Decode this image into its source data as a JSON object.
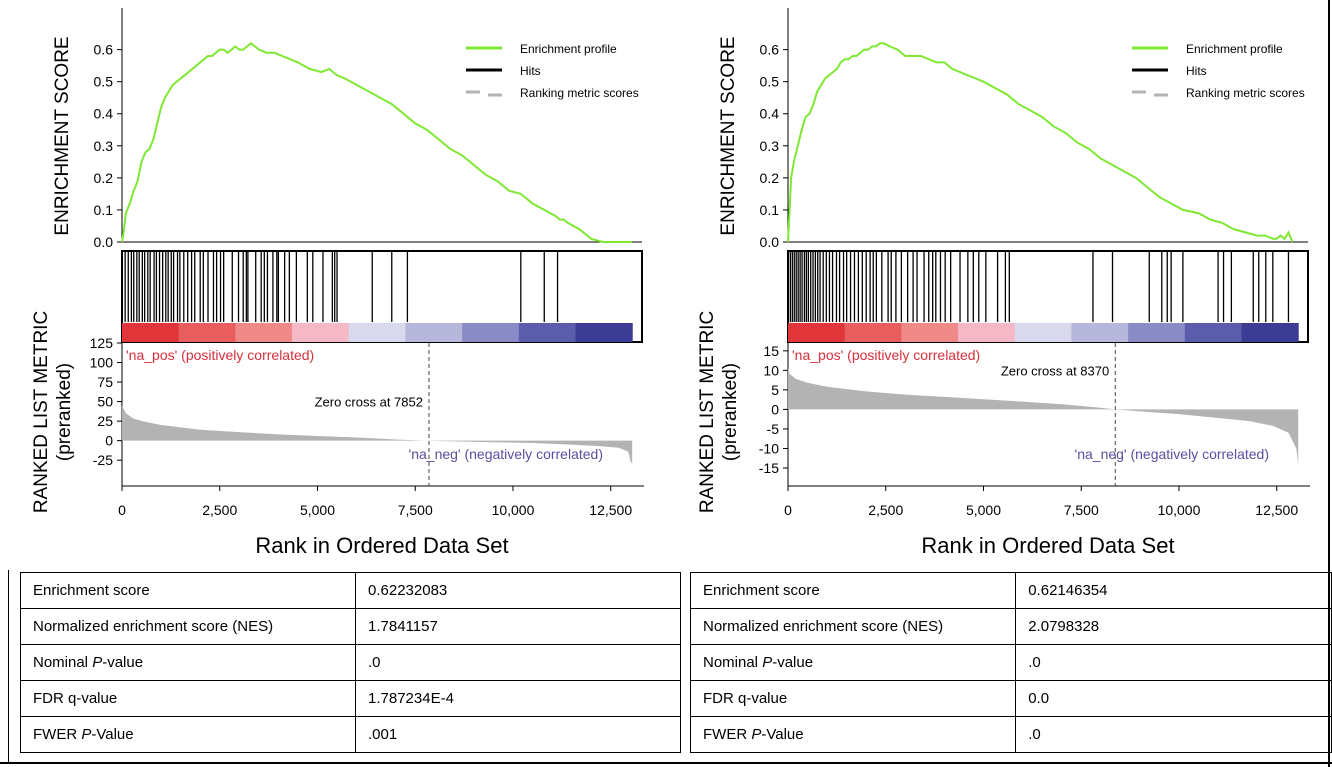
{
  "chart_data": [
    {
      "type": "line",
      "panel": "left",
      "ylabel_top": "ENRICHMENT SCORE",
      "ylabel_bottom": [
        "RANKED LIST METRIC",
        "(preranked)"
      ],
      "xlabel": "Rank in Ordered Data Set",
      "legend": [
        "Enrichment profile",
        "Hits",
        "Ranking metric scores"
      ],
      "legend_position": "top-right",
      "es_ylim": [
        0,
        0.63
      ],
      "es_yticks": [
        "0.0",
        "0.1",
        "0.2",
        "0.3",
        "0.4",
        "0.5",
        "0.6"
      ],
      "xlim": [
        0,
        13300
      ],
      "xticks": [
        "0",
        "2,500",
        "5,000",
        "7,500",
        "10,000",
        "12,500"
      ],
      "n_genes": 13050,
      "profile": {
        "x": [
          0,
          50,
          100,
          200,
          300,
          400,
          500,
          600,
          700,
          800,
          900,
          1000,
          1100,
          1200,
          1300,
          1400,
          1500,
          1600,
          1700,
          1800,
          1900,
          2000,
          2100,
          2200,
          2300,
          2400,
          2500,
          2600,
          2700,
          2800,
          2900,
          3000,
          3100,
          3200,
          3300,
          3400,
          3500,
          3700,
          3900,
          4100,
          4300,
          4500,
          4800,
          5100,
          5300,
          5400,
          5500,
          5700,
          6000,
          6300,
          6600,
          6900,
          7200,
          7500,
          7800,
          8100,
          8400,
          8700,
          9000,
          9300,
          9600,
          9900,
          10200,
          10500,
          10800,
          11100,
          11200,
          11300,
          11400,
          11700,
          12000,
          12300,
          12600,
          12900,
          13050
        ],
        "es": [
          0,
          0.04,
          0.09,
          0.12,
          0.16,
          0.19,
          0.25,
          0.28,
          0.29,
          0.32,
          0.37,
          0.42,
          0.45,
          0.47,
          0.49,
          0.5,
          0.51,
          0.52,
          0.53,
          0.54,
          0.55,
          0.56,
          0.57,
          0.58,
          0.58,
          0.59,
          0.6,
          0.6,
          0.59,
          0.6,
          0.61,
          0.6,
          0.6,
          0.61,
          0.62,
          0.61,
          0.6,
          0.59,
          0.59,
          0.58,
          0.57,
          0.56,
          0.54,
          0.53,
          0.54,
          0.53,
          0.52,
          0.51,
          0.49,
          0.47,
          0.45,
          0.43,
          0.4,
          0.37,
          0.35,
          0.32,
          0.29,
          0.27,
          0.24,
          0.21,
          0.19,
          0.16,
          0.15,
          0.12,
          0.1,
          0.08,
          0.07,
          0.07,
          0.06,
          0.04,
          0.01,
          0.0,
          0.0,
          0.0,
          0.0
        ]
      },
      "hits": [
        80,
        160,
        240,
        300,
        380,
        440,
        520,
        580,
        660,
        720,
        820,
        880,
        960,
        1040,
        1120,
        1180,
        1260,
        1320,
        1420,
        1480,
        1580,
        1680,
        1780,
        1860,
        2000,
        2080,
        2200,
        2340,
        2420,
        2520,
        2600,
        2820,
        2980,
        3100,
        3180,
        3220,
        3420,
        3560,
        3640,
        3720,
        3860,
        3960,
        4000,
        4160,
        4280,
        4460,
        4740,
        4880,
        5140,
        5380,
        5440,
        5500,
        6400,
        6900,
        7300,
        10200,
        10800,
        11140
      ],
      "metric_ylim": [
        -35,
        125
      ],
      "metric_yticks": [
        "125",
        "100",
        "75",
        "50",
        "25",
        "0",
        "-25"
      ],
      "metric_ytick_values": [
        125,
        100,
        75,
        50,
        25,
        0,
        -25
      ],
      "metric": {
        "x": [
          0,
          100,
          300,
          600,
          1000,
          1500,
          2000,
          3000,
          4000,
          5000,
          6000,
          7000,
          7852,
          8500,
          9500,
          10500,
          11500,
          12200,
          12700,
          12950,
          13000,
          13050
        ],
        "y": [
          45,
          35,
          28,
          24,
          20,
          17,
          14,
          11,
          8,
          6,
          4,
          1.5,
          0,
          -1,
          -2,
          -3,
          -5,
          -7,
          -9,
          -14,
          -25,
          -30
        ]
      },
      "heatmap_colors": [
        "#e0363a",
        "#e85d5e",
        "#f08a88",
        "#f4b8c6",
        "#d9d9ee",
        "#b7b7dc",
        "#8a8ac6",
        "#5c5cac",
        "#3c3c94"
      ],
      "pos_label": "'na_pos' (positively correlated)",
      "neg_label": "'na_neg' (negatively correlated)",
      "zero_cross": 7852,
      "zero_cross_label": "Zero cross at 7852"
    },
    {
      "type": "line",
      "panel": "right",
      "ylabel_top": "ENRICHMENT SCORE",
      "ylabel_bottom": [
        "RANKED LIST METRIC",
        "(preranked)"
      ],
      "xlabel": "Rank in Ordered Data Set",
      "legend": [
        "Enrichment profile",
        "Hits",
        "Ranking metric scores"
      ],
      "legend_position": "top-right",
      "es_ylim": [
        0,
        0.63
      ],
      "es_yticks": [
        "0.0",
        "0.1",
        "0.2",
        "0.3",
        "0.4",
        "0.5",
        "0.6"
      ],
      "xlim": [
        0,
        13300
      ],
      "xticks": [
        "0",
        "2,500",
        "5,000",
        "7,500",
        "10,000",
        "12,500"
      ],
      "n_genes": 13050,
      "profile": {
        "x": [
          0,
          40,
          80,
          150,
          250,
          350,
          450,
          550,
          650,
          750,
          850,
          950,
          1050,
          1150,
          1250,
          1350,
          1450,
          1550,
          1650,
          1750,
          1850,
          1950,
          2050,
          2150,
          2250,
          2350,
          2450,
          2600,
          2800,
          3000,
          3200,
          3400,
          3600,
          3800,
          4000,
          4200,
          4400,
          4600,
          4800,
          5000,
          5300,
          5600,
          5900,
          6200,
          6500,
          6800,
          7100,
          7400,
          7700,
          8000,
          8300,
          8600,
          8900,
          9200,
          9500,
          9800,
          10100,
          10500,
          10800,
          11100,
          11400,
          11700,
          12000,
          12200,
          12400,
          12500,
          12600,
          12700,
          12800,
          12900
        ],
        "es": [
          0,
          0.1,
          0.2,
          0.25,
          0.3,
          0.35,
          0.39,
          0.4,
          0.43,
          0.47,
          0.49,
          0.51,
          0.52,
          0.53,
          0.54,
          0.56,
          0.57,
          0.57,
          0.58,
          0.58,
          0.59,
          0.6,
          0.6,
          0.61,
          0.61,
          0.62,
          0.62,
          0.61,
          0.6,
          0.58,
          0.58,
          0.58,
          0.57,
          0.56,
          0.56,
          0.54,
          0.53,
          0.52,
          0.51,
          0.5,
          0.48,
          0.46,
          0.43,
          0.41,
          0.39,
          0.36,
          0.34,
          0.31,
          0.29,
          0.26,
          0.24,
          0.22,
          0.2,
          0.17,
          0.14,
          0.12,
          0.1,
          0.09,
          0.07,
          0.06,
          0.04,
          0.03,
          0.02,
          0.02,
          0.01,
          0.01,
          0.02,
          0.01,
          0.03,
          0.0
        ]
      },
      "hits": [
        60,
        110,
        160,
        210,
        260,
        310,
        360,
        420,
        470,
        520,
        580,
        640,
        700,
        760,
        820,
        900,
        980,
        1060,
        1140,
        1240,
        1320,
        1420,
        1500,
        1600,
        1700,
        1800,
        1900,
        2000,
        2100,
        2180,
        2260,
        2400,
        2560,
        2640,
        2760,
        2900,
        3060,
        3200,
        3300,
        3480,
        3600,
        3700,
        3780,
        3900,
        4020,
        4160,
        4400,
        4600,
        4740,
        4880,
        5060,
        5360,
        5560,
        5660,
        7800,
        8300,
        9240,
        9560,
        9700,
        9800,
        10100,
        11000,
        11140,
        11340,
        11900,
        12040,
        12220,
        12400,
        12800
      ],
      "metric_ylim": [
        -15,
        17
      ],
      "metric_yticks": [
        "15",
        "10",
        "5",
        "0",
        "-5",
        "-10",
        "-15"
      ],
      "metric_ytick_values": [
        15,
        10,
        5,
        0,
        -5,
        -10,
        -15
      ],
      "metric": {
        "x": [
          0,
          50,
          200,
          500,
          1000,
          1500,
          2000,
          3000,
          4000,
          5000,
          6000,
          7000,
          8000,
          8370,
          9000,
          10000,
          11000,
          11800,
          12400,
          12800,
          13000,
          13050
        ],
        "y": [
          10.5,
          9,
          7.8,
          6.8,
          5.8,
          5.2,
          4.6,
          3.8,
          3.2,
          2.6,
          2,
          1.3,
          0.4,
          0,
          -0.5,
          -1.2,
          -2.2,
          -3,
          -4.2,
          -6,
          -10,
          -14
        ]
      },
      "heatmap_colors": [
        "#e0363a",
        "#e85d5e",
        "#f08a88",
        "#f4b8c6",
        "#d9d9ee",
        "#b7b7dc",
        "#8a8ac6",
        "#5c5cac",
        "#3c3c94"
      ],
      "pos_label": "'na_pos' (positively correlated)",
      "neg_label": "'na_neg' (negatively correlated)",
      "zero_cross": 8370,
      "zero_cross_label": "Zero cross at 8370"
    }
  ],
  "tables": [
    {
      "rows": [
        {
          "label": "Enrichment score",
          "value": "0.62232083"
        },
        {
          "label": "Normalized enrichment score (NES)",
          "value": "1.7841157"
        },
        {
          "label_pre": "Nominal ",
          "label_ital": "P",
          "label_post": "-value",
          "value": ".0"
        },
        {
          "label": "FDR q-value",
          "value": "1.787234E-4"
        },
        {
          "label_pre": "FWER ",
          "label_ital": "P",
          "label_post": "-Value",
          "value": ".001"
        }
      ]
    },
    {
      "rows": [
        {
          "label": "Enrichment score",
          "value": "0.62146354"
        },
        {
          "label": "Normalized enrichment score (NES)",
          "value": "2.0798328"
        },
        {
          "label_pre": "Nominal ",
          "label_ital": "P",
          "label_post": "-value",
          "value": ".0"
        },
        {
          "label": "FDR q-value",
          "value": "0.0"
        },
        {
          "label_pre": "FWER ",
          "label_ital": "P",
          "label_post": "-Value",
          "value": ".0"
        }
      ]
    }
  ],
  "colors": {
    "profile": "#7fe832",
    "hits": "#000000",
    "metric": "#b3b3b3",
    "pos_label": "#d6303a",
    "neg_label": "#5a4ea0"
  }
}
